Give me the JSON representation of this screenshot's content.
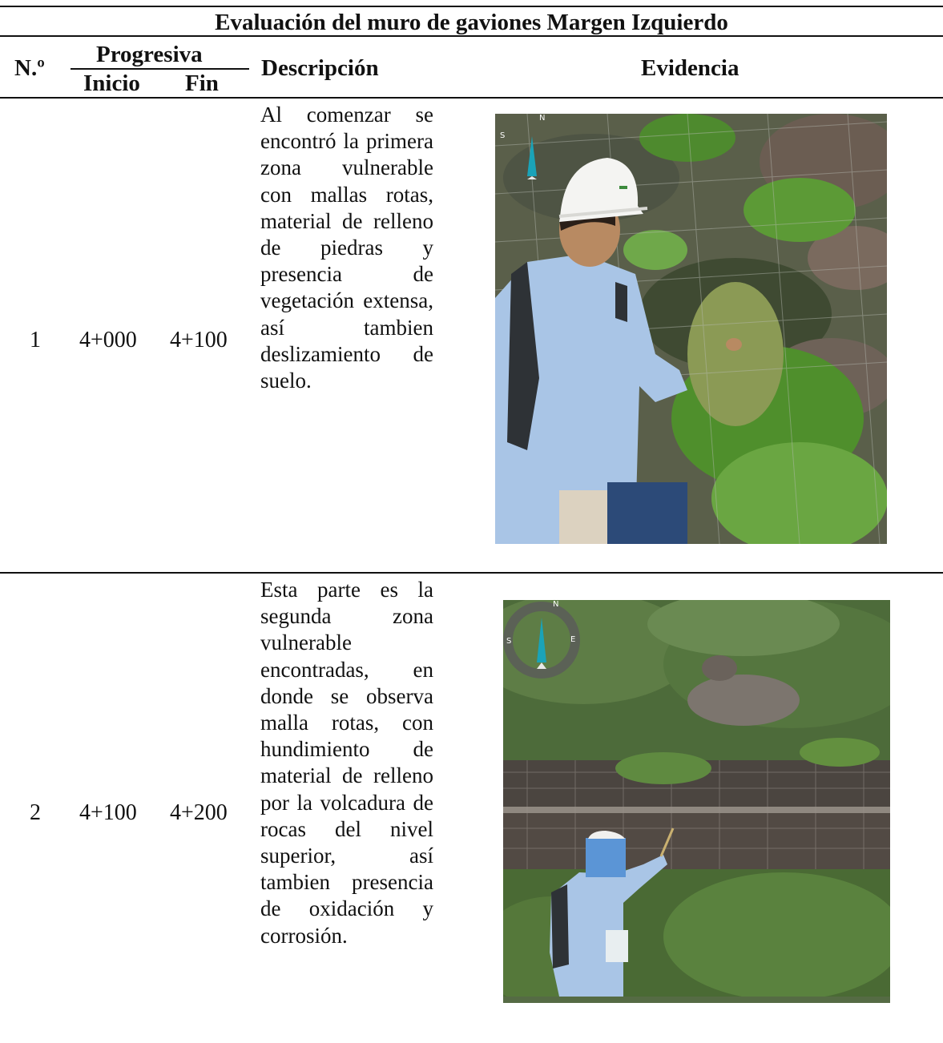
{
  "table": {
    "title": "Evaluación del muro de gaviones Margen Izquierdo",
    "headers": {
      "number": "N.º",
      "progresiva": "Progresiva",
      "start": "Inicio",
      "end": "Fin",
      "description": "Descripción",
      "evidence": "Evidencia"
    },
    "rows": [
      {
        "number": "1",
        "start": "4+000",
        "end": "4+100",
        "description": "Al comenzar se encontró la primera zona vulnerable con mallas rotas, material de relleno de piedras y presencia de vegetación extensa, así tambien deslizamiento de suelo."
      },
      {
        "number": "2",
        "start": "4+100",
        "end": "4+200",
        "description": "Esta parte es la segunda zona vulnerable encontradas, en donde se observa malla rotas, con hundimiento de material de relleno por la volcadura de rocas del nivel superior, así tambien presencia de oxidación y corrosión."
      }
    ]
  },
  "photos": [
    {
      "compass_letters": [
        "N",
        "S"
      ]
    },
    {
      "compass_letters": [
        "N",
        "S",
        "E"
      ]
    }
  ],
  "colors": {
    "rule": "#111111",
    "helmet": "#f4f4f2",
    "shirt": "#a9c5e6",
    "blur_box": "#5b95d6",
    "compass": "#1aa3b8"
  }
}
